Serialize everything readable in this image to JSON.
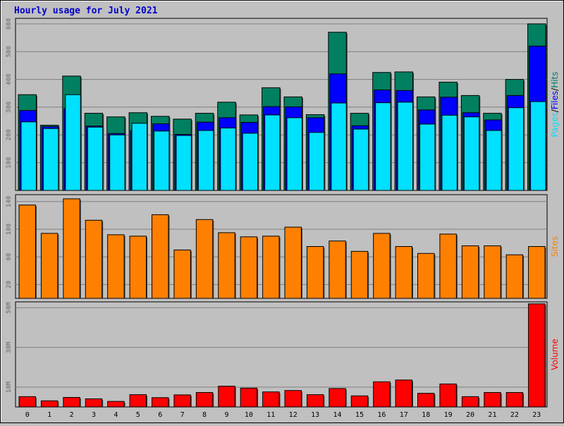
{
  "title": "Hourly usage for July 2021",
  "colors": {
    "background": "#c0c0c0",
    "plot_bg": "#c0c0c0",
    "title": "#0000cc",
    "hits": "#008060",
    "files": "#0000ff",
    "pages": "#00e0ff",
    "sites": "#ff8000",
    "volume": "#ff0000",
    "grid": "#808080"
  },
  "chart_data": [
    {
      "type": "bar",
      "name": "hits-files-pages",
      "ylabel_parts": [
        "Pages",
        "/",
        "Files",
        "/",
        "Hits"
      ],
      "ylim": [
        0,
        620
      ],
      "yticks": [
        100,
        200,
        300,
        400,
        500,
        600
      ],
      "categories": [
        "0",
        "1",
        "2",
        "3",
        "4",
        "5",
        "6",
        "7",
        "8",
        "9",
        "10",
        "11",
        "12",
        "13",
        "14",
        "15",
        "16",
        "17",
        "18",
        "19",
        "20",
        "21",
        "22",
        "23"
      ],
      "series": [
        {
          "name": "Hits",
          "values": [
            345,
            235,
            412,
            278,
            265,
            280,
            267,
            257,
            278,
            318,
            272,
            370,
            337,
            273,
            570,
            278,
            425,
            427,
            337,
            390,
            342,
            278,
            400,
            600
          ]
        },
        {
          "name": "Files",
          "values": [
            288,
            230,
            295,
            232,
            205,
            215,
            240,
            202,
            246,
            262,
            245,
            302,
            301,
            262,
            420,
            233,
            362,
            360,
            290,
            336,
            280,
            254,
            342,
            520
          ]
        },
        {
          "name": "Pages",
          "values": [
            247,
            223,
            345,
            228,
            200,
            242,
            214,
            198,
            216,
            225,
            206,
            272,
            262,
            209,
            315,
            221,
            316,
            318,
            239,
            271,
            265,
            216,
            298,
            320
          ]
        }
      ]
    },
    {
      "type": "bar",
      "name": "sites",
      "ylabel_parts": [
        "Sites"
      ],
      "ylim": [
        0,
        150
      ],
      "yticks": [
        20,
        60,
        100,
        140
      ],
      "categories": [
        "0",
        "1",
        "2",
        "3",
        "4",
        "5",
        "6",
        "7",
        "8",
        "9",
        "10",
        "11",
        "12",
        "13",
        "14",
        "15",
        "16",
        "17",
        "18",
        "19",
        "20",
        "21",
        "22",
        "23"
      ],
      "series": [
        {
          "name": "Sites",
          "values": [
            135,
            94,
            144,
            113,
            92,
            90,
            121,
            70,
            114,
            95,
            89,
            90,
            103,
            75,
            83,
            68,
            94,
            75,
            65,
            93,
            76,
            76,
            63,
            75
          ]
        }
      ]
    },
    {
      "type": "bar",
      "name": "volume",
      "ylabel_parts": [
        "Volume"
      ],
      "ylim": [
        0,
        53000000
      ],
      "yticks": [
        10000000,
        30000000,
        50000000
      ],
      "yticklabels": [
        "10M",
        "30M",
        "50M"
      ],
      "categories": [
        "0",
        "1",
        "2",
        "3",
        "4",
        "5",
        "6",
        "7",
        "8",
        "9",
        "10",
        "11",
        "12",
        "13",
        "14",
        "15",
        "16",
        "17",
        "18",
        "19",
        "20",
        "21",
        "22",
        "23"
      ],
      "series": [
        {
          "name": "Volume",
          "values": [
            5200000,
            3100000,
            4800000,
            4100000,
            2800000,
            6200000,
            4700000,
            6100000,
            7300000,
            10500000,
            9500000,
            7600000,
            8300000,
            6200000,
            9300000,
            5600000,
            12700000,
            13600000,
            6900000,
            11600000,
            5200000,
            7300000,
            7300000,
            52000000
          ]
        }
      ]
    }
  ]
}
